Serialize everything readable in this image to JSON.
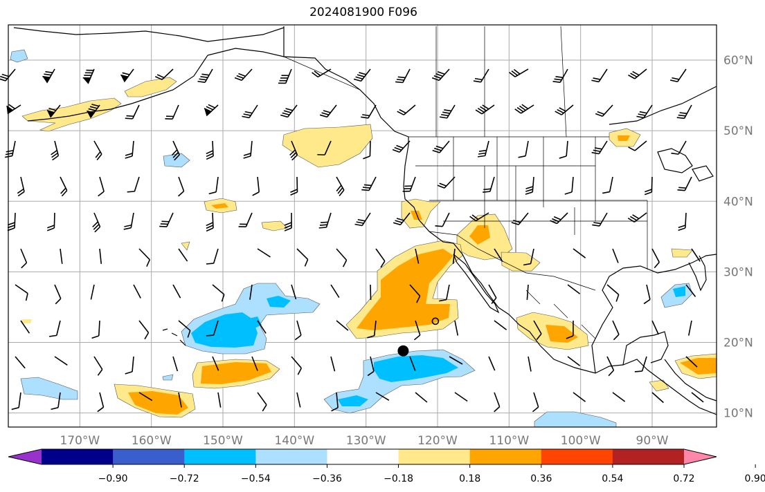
{
  "title": "2024081900 F096",
  "map": {
    "lon_range": [
      -180,
      -81
    ],
    "lat_range": [
      8,
      65
    ],
    "grid": true,
    "lat_labels": [
      {
        "lat": 10,
        "text": "10°N"
      },
      {
        "lat": 20,
        "text": "20°N"
      },
      {
        "lat": 30,
        "text": "30°N"
      },
      {
        "lat": 40,
        "text": "40°N"
      },
      {
        "lat": 50,
        "text": "50°N"
      },
      {
        "lat": 60,
        "text": "60°N"
      }
    ],
    "lon_labels": [
      {
        "lon": -170,
        "text": "170°W"
      },
      {
        "lon": -160,
        "text": "160°W"
      },
      {
        "lon": -150,
        "text": "150°W"
      },
      {
        "lon": -140,
        "text": "140°W"
      },
      {
        "lon": -130,
        "text": "130°W"
      },
      {
        "lon": -120,
        "text": "120°W"
      },
      {
        "lon": -110,
        "text": "110°W"
      },
      {
        "lon": -100,
        "text": "100°W"
      },
      {
        "lon": -90,
        "text": "90°W"
      }
    ]
  },
  "colorbar": {
    "levels": [
      "−0.90",
      "−0.72",
      "−0.54",
      "−0.36",
      "−0.18",
      "0.18",
      "0.36",
      "0.54",
      "0.72",
      "0.90"
    ],
    "colors": [
      "#9932CC",
      "#00008B",
      "#3A5FCD",
      "#00BFFF",
      "#ADDFFF",
      "#FFFFFF",
      "#FFE98A",
      "#FFA500",
      "#FF4500",
      "#B22222",
      "#FF88AA"
    ]
  },
  "markers": [
    {
      "type": "filled-circle",
      "lon": -124.8,
      "lat": 18.8
    },
    {
      "type": "open-circle",
      "lon": -120.3,
      "lat": 23.0
    }
  ]
}
